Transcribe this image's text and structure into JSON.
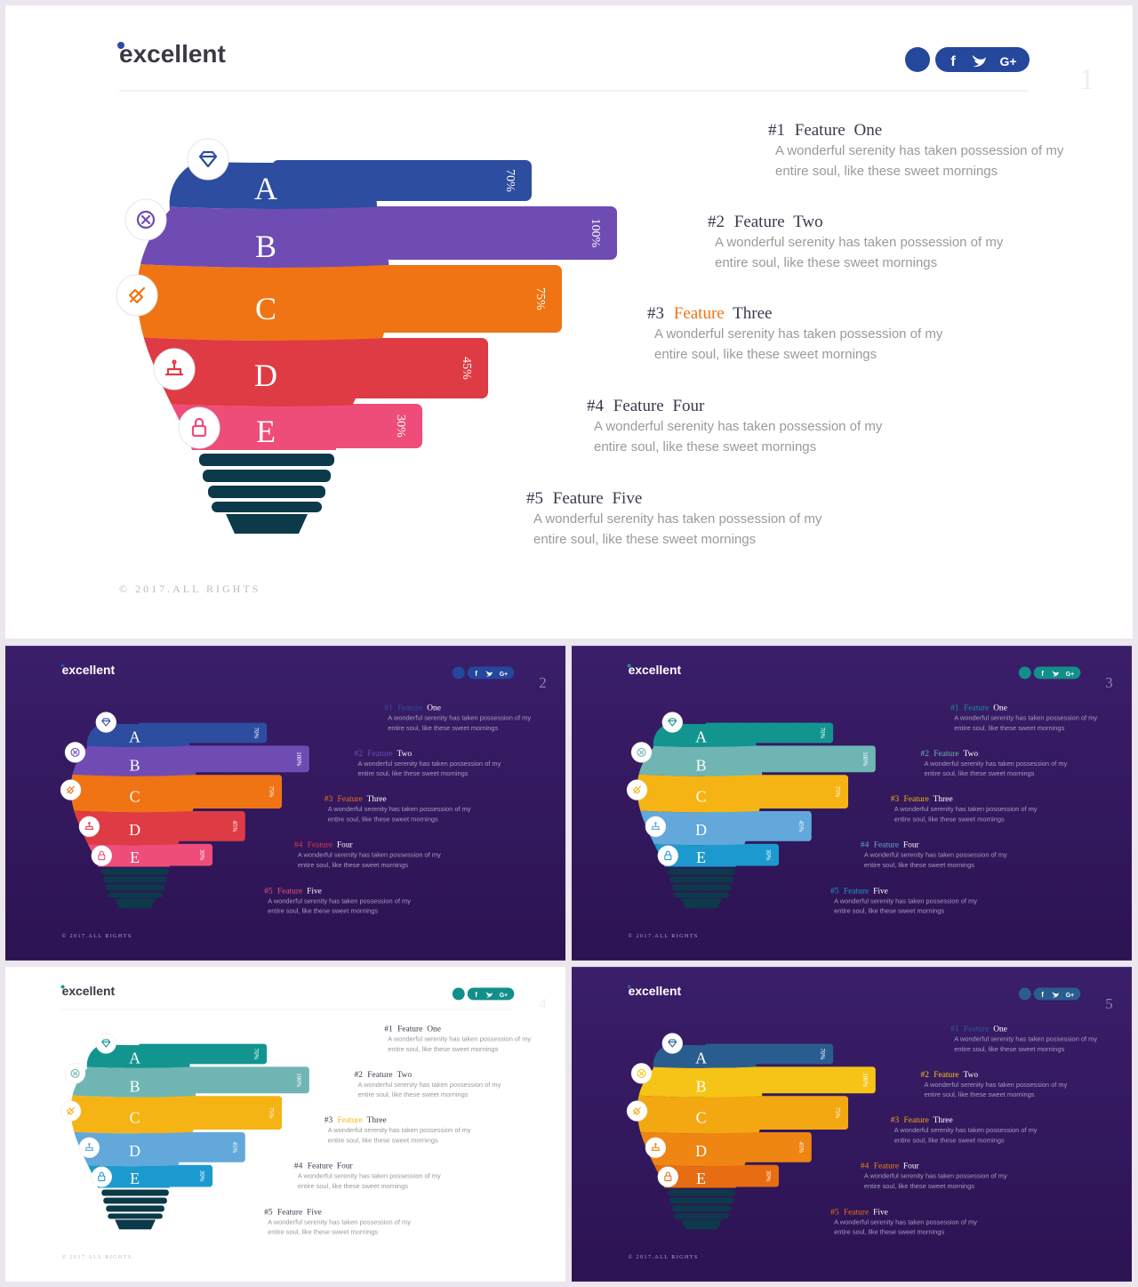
{
  "brand": {
    "name": "excellent"
  },
  "social": {
    "facebook": "f",
    "twitter": "twitter",
    "google": "G+"
  },
  "copyright": "© 2017.ALL RIGHTS",
  "layers": [
    {
      "letter": "A",
      "percent": "70%",
      "icon": "diamond-icon"
    },
    {
      "letter": "B",
      "percent": "100%",
      "icon": "compass-icon"
    },
    {
      "letter": "C",
      "percent": "75%",
      "icon": "rocket-icon"
    },
    {
      "letter": "D",
      "percent": "45%",
      "icon": "cake-icon"
    },
    {
      "letter": "E",
      "percent": "30%",
      "icon": "lock-icon"
    }
  ],
  "features": [
    {
      "num": "#1",
      "word": "Feature",
      "name": "One",
      "desc_line1": "A wonderful serenity has taken possession of my",
      "desc_line2": "entire soul, like these sweet mornings"
    },
    {
      "num": "#2",
      "word": "Feature",
      "name": "Two",
      "desc_line1": "A wonderful serenity has taken possession of my",
      "desc_line2": "entire soul, like these sweet mornings"
    },
    {
      "num": "#3",
      "word": "Feature",
      "name": "Three",
      "desc_line1": "A wonderful serenity has taken possession of my",
      "desc_line2": "entire soul, like these sweet mornings"
    },
    {
      "num": "#4",
      "word": "Feature",
      "name": "Four",
      "desc_line1": "A wonderful serenity has taken possession of my",
      "desc_line2": "entire soul, like these sweet mornings"
    },
    {
      "num": "#5",
      "word": "Feature",
      "name": "Five",
      "desc_line1": "A wonderful serenity has taken possession of my",
      "desc_line2": "entire soul, like these sweet mornings"
    }
  ],
  "slides": [
    {
      "number": "1",
      "theme": "light",
      "palette": [
        "#2d4da0",
        "#6f4bb4",
        "#f07414",
        "#df3b45",
        "#ee4d79"
      ],
      "logo_color": "#2d4da0",
      "social_color": "#25479c"
    },
    {
      "number": "2",
      "theme": "dark",
      "palette": [
        "#2d4da0",
        "#6f4bb4",
        "#f07414",
        "#df3b45",
        "#ee4d79"
      ],
      "logo_color": "#2d4da0",
      "social_color": "#25479c"
    },
    {
      "number": "3",
      "theme": "dark",
      "palette": [
        "#12958f",
        "#6fb5b3",
        "#f5b414",
        "#62a8da",
        "#1c9ad0"
      ],
      "logo_color": "#12958f",
      "social_color": "#128f8a"
    },
    {
      "number": "4",
      "theme": "light",
      "palette": [
        "#12958f",
        "#6fb5b3",
        "#f5b414",
        "#62a8da",
        "#1c9ad0"
      ],
      "logo_color": "#12958f",
      "social_color": "#128f8a"
    },
    {
      "number": "5",
      "theme": "dark",
      "palette": [
        "#2a5d8f",
        "#f6c416",
        "#f3a812",
        "#ef8512",
        "#e86c12"
      ],
      "logo_color": "#2a5d8f",
      "social_color": "#2a5d8f"
    }
  ],
  "colors": {
    "dark_bg": "#34185e",
    "light_bg": "#ffffff",
    "bulb_base": "#0c3a4a"
  }
}
